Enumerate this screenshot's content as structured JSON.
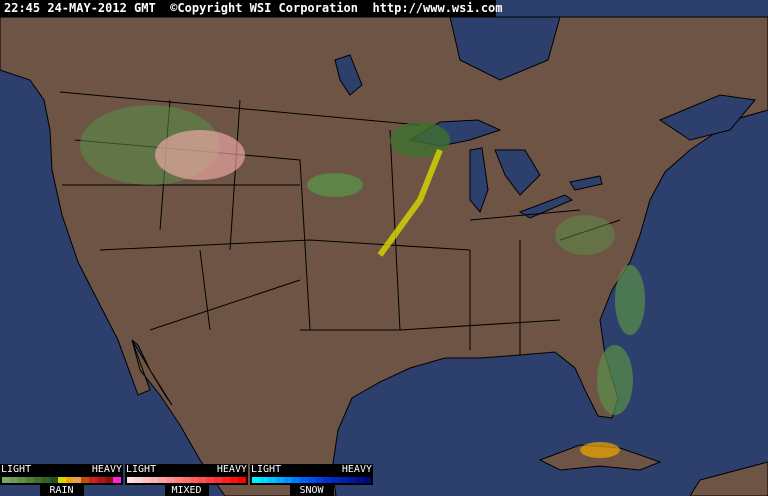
{
  "header": {
    "text": "22:45 24-MAY-2012 GMT  ©Copyright WSI Corporation  http://www.wsi.com"
  },
  "colors": {
    "ocean": "#2d3f6c",
    "land": "#6e5444",
    "border": "#000000"
  },
  "legend": [
    {
      "name": "RAIN",
      "light": "LIGHT",
      "heavy": "HEAVY",
      "colors": [
        "#7aa860",
        "#6a9c54",
        "#5a9048",
        "#4c803c",
        "#3e7030",
        "#306226",
        "#22521c",
        "#d8d800",
        "#f0a800",
        "#e0a060",
        "#c05000",
        "#d02020",
        "#b01818",
        "#901010",
        "#ff20e0"
      ]
    },
    {
      "name": "MIXED",
      "light": "LIGHT",
      "heavy": "HEAVY",
      "colors": [
        "#ffe0e0",
        "#ffd0d0",
        "#ffc0c0",
        "#ffb0b0",
        "#ffa0a0",
        "#ff9090",
        "#ff8080",
        "#ff7070",
        "#ff6060",
        "#ff5050",
        "#ff4040",
        "#ff3030",
        "#ff2020",
        "#ff1010",
        "#ff0000"
      ]
    },
    {
      "name": "SNOW",
      "light": "LIGHT",
      "heavy": "HEAVY",
      "colors": [
        "#00f0ff",
        "#00d8ff",
        "#00c0ff",
        "#00a8ff",
        "#0090ff",
        "#0078ff",
        "#0060ff",
        "#0050f0",
        "#0040e0",
        "#0030d0",
        "#0028c0",
        "#0020b0",
        "#0018a0",
        "#001090",
        "#000880"
      ]
    }
  ]
}
